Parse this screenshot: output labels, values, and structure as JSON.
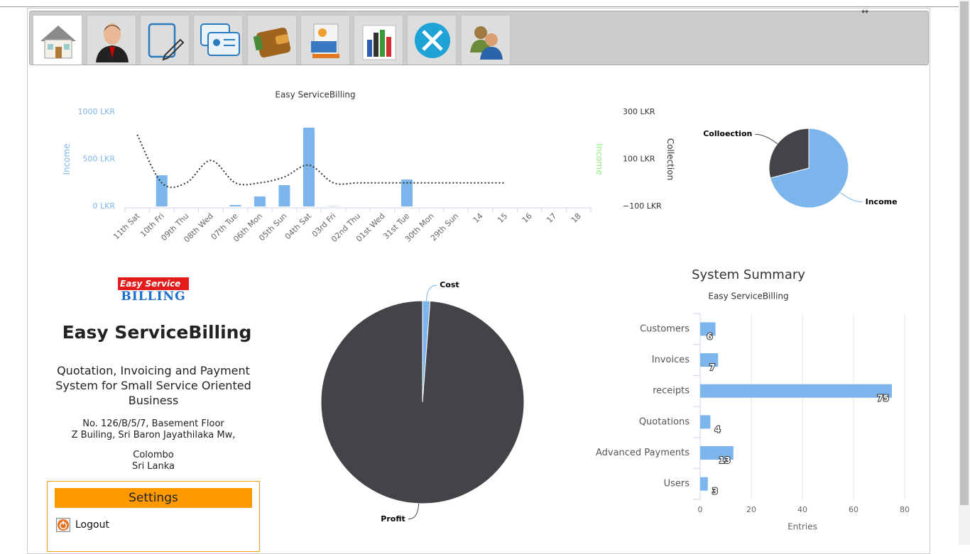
{
  "chart_data": [
    {
      "type": "bar",
      "title": "Easy ServiceBilling",
      "categories": [
        "11th Sat",
        "10th Fri",
        "09th Thu",
        "08th Wed",
        "07th Tue",
        "06th Mon",
        "05th Sun",
        "04th Sat",
        "03rd Fri",
        "02nd Thu",
        "01st Wed",
        "31st Tue",
        "30th Mon",
        "29th Sun",
        "14",
        "15",
        "16",
        "17",
        "18"
      ],
      "ylabel": "Income",
      "y2labels": [
        "Income",
        "Collection"
      ],
      "ylim": [
        0,
        1000
      ],
      "yticks": [
        {
          "value": 0,
          "label": "0 LKR"
        },
        {
          "value": 500,
          "label": "500 LKR"
        },
        {
          "value": 1000,
          "label": "1000 LKR"
        }
      ],
      "y2lim": [
        -100,
        300
      ],
      "y2ticks": [
        {
          "value": -100,
          "label": "−100 LKR"
        },
        {
          "value": 100,
          "label": "100 LKR"
        },
        {
          "value": 300,
          "label": "300 LKR"
        }
      ],
      "series": [
        {
          "color": "#7cb5ec",
          "values": [
            0,
            330,
            0,
            0,
            15,
            105,
            225,
            835,
            3,
            0,
            0,
            285,
            0,
            0,
            0,
            0,
            0,
            0,
            0
          ]
        },
        {
          "type": "line",
          "axis": "y2",
          "color": "#333333",
          "values": [
            204,
            0,
            0,
            95,
            0,
            0,
            25,
            75,
            0,
            0,
            0,
            0,
            0,
            0,
            0,
            0,
            null,
            null,
            null
          ]
        }
      ]
    },
    {
      "type": "pie",
      "categories": [
        "Income",
        "Colloection"
      ],
      "values": [
        71,
        29
      ],
      "colors": [
        "#7cb5ec",
        "#434348"
      ]
    },
    {
      "type": "pie",
      "categories": [
        "Cost",
        "Profit"
      ],
      "values": [
        1.2,
        98.8
      ],
      "colors": [
        "#7cb5ec",
        "#434348"
      ]
    },
    {
      "type": "bar",
      "horizontal": true,
      "title": "System Summary",
      "subtitle": "Easy ServiceBilling",
      "categories": [
        "Customers",
        "Invoices",
        "receipts",
        "Quotations",
        "Advanced Payments",
        "Users"
      ],
      "values": [
        6,
        7,
        75,
        4,
        13,
        3
      ],
      "color": "#7cb5ec",
      "xlabel": "Entries",
      "xlim": [
        0,
        80
      ],
      "xticks": [
        0,
        20,
        40,
        60,
        80
      ],
      "grid": true
    }
  ],
  "company": {
    "logo_top": "Easy Service",
    "logo_bottom": "BILLING",
    "name": "Easy ServiceBilling",
    "tagline": "Quotation, Invoicing and Payment System for Small Service Oriented Business",
    "address": [
      "No. 126/B/5/7, Basement Floor",
      "Z Builing, Sri Baron Jayathilaka Mw,",
      "Colombo",
      "Sri Lanka"
    ]
  },
  "settings": {
    "title": "Settings",
    "logout": "Logout"
  }
}
